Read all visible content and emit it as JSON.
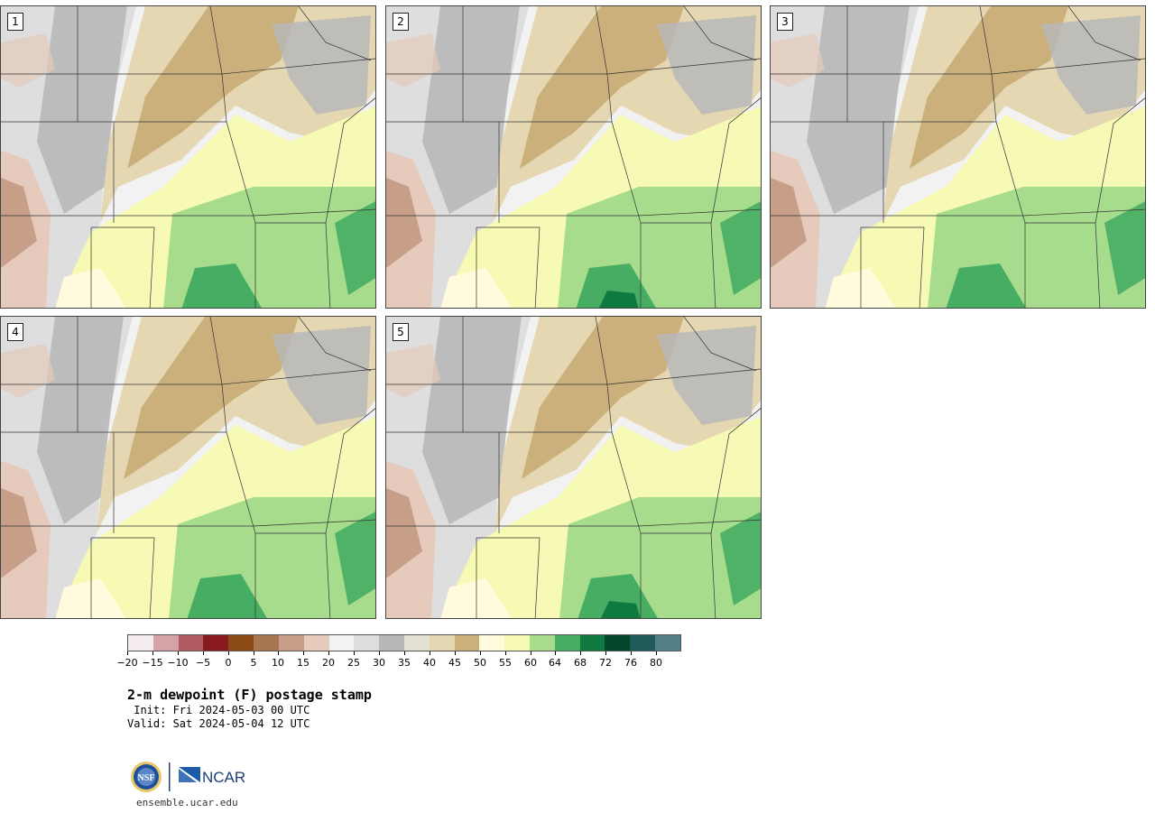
{
  "panels": [
    {
      "label": "1"
    },
    {
      "label": "2"
    },
    {
      "label": "3"
    },
    {
      "label": "4"
    },
    {
      "label": "5"
    }
  ],
  "colorbar": {
    "colors": [
      "#f4ecee",
      "#d4a3a8",
      "#b05a61",
      "#8a1a22",
      "#8b4a14",
      "#a87752",
      "#c79e87",
      "#e6cabb",
      "#f2f2f2",
      "#dedede",
      "#b8b8b8",
      "#e2e1d3",
      "#e4d7b2",
      "#cbb07c",
      "#fffbdc",
      "#f6fab4",
      "#a6dc8c",
      "#47ad63",
      "#0f7a3f",
      "#03472a",
      "#1f5b5a",
      "#55808a"
    ],
    "tick_labels": [
      "-20",
      "-15",
      "-10",
      "-5",
      "0",
      "5",
      "10",
      "15",
      "20",
      "25",
      "30",
      "35",
      "40",
      "45",
      "50",
      "55",
      "60",
      "64",
      "68",
      "72",
      "76",
      "80"
    ]
  },
  "title": "2-m dewpoint (F) postage stamp",
  "init": " Init: Fri 2024-05-03 00 UTC",
  "valid": "Valid: Sat 2024-05-04 12 UTC",
  "logo": {
    "nsf": "NSF",
    "ncar": "NCAR"
  },
  "url": "ensemble.ucar.edu"
}
